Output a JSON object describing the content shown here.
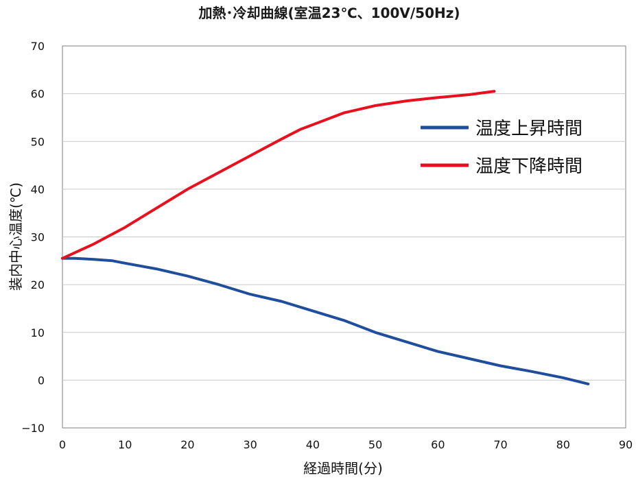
{
  "chart_data": {
    "type": "line",
    "title": "加熱･冷却曲線(室温23℃、100V/50Hz)",
    "xlabel": "経過時間(分)",
    "ylabel": "装内中心温度(℃)",
    "xlim": [
      0,
      90
    ],
    "ylim": [
      -10,
      70
    ],
    "x_ticks": [
      "0",
      "10",
      "20",
      "30",
      "40",
      "50",
      "60",
      "70",
      "80",
      "90"
    ],
    "y_ticks": [
      "70",
      "60",
      "50",
      "40",
      "30",
      "20",
      "10",
      "0",
      "−10"
    ],
    "grid": "horizontal",
    "legend_position": "right",
    "series": [
      {
        "name": "温度上昇時間",
        "color": "#1f4e9c",
        "x": [
          0,
          2,
          5,
          8,
          10,
          15,
          20,
          25,
          30,
          35,
          40,
          45,
          50,
          55,
          60,
          65,
          70,
          75,
          80,
          84
        ],
        "y": [
          25.5,
          25.5,
          25.3,
          25.0,
          24.5,
          23.3,
          21.8,
          20.0,
          18.0,
          16.5,
          14.5,
          12.5,
          10.0,
          8.0,
          6.0,
          4.5,
          3.0,
          1.8,
          0.5,
          -0.8
        ]
      },
      {
        "name": "温度下降時間",
        "color": "#e8101e",
        "x": [
          0,
          5,
          10,
          15,
          20,
          25,
          30,
          35,
          38,
          40,
          45,
          50,
          55,
          60,
          65,
          69
        ],
        "y": [
          25.5,
          28.5,
          32.0,
          36.0,
          40.0,
          43.5,
          47.0,
          50.5,
          52.5,
          53.5,
          56.0,
          57.5,
          58.5,
          59.2,
          59.8,
          60.5
        ]
      }
    ]
  }
}
